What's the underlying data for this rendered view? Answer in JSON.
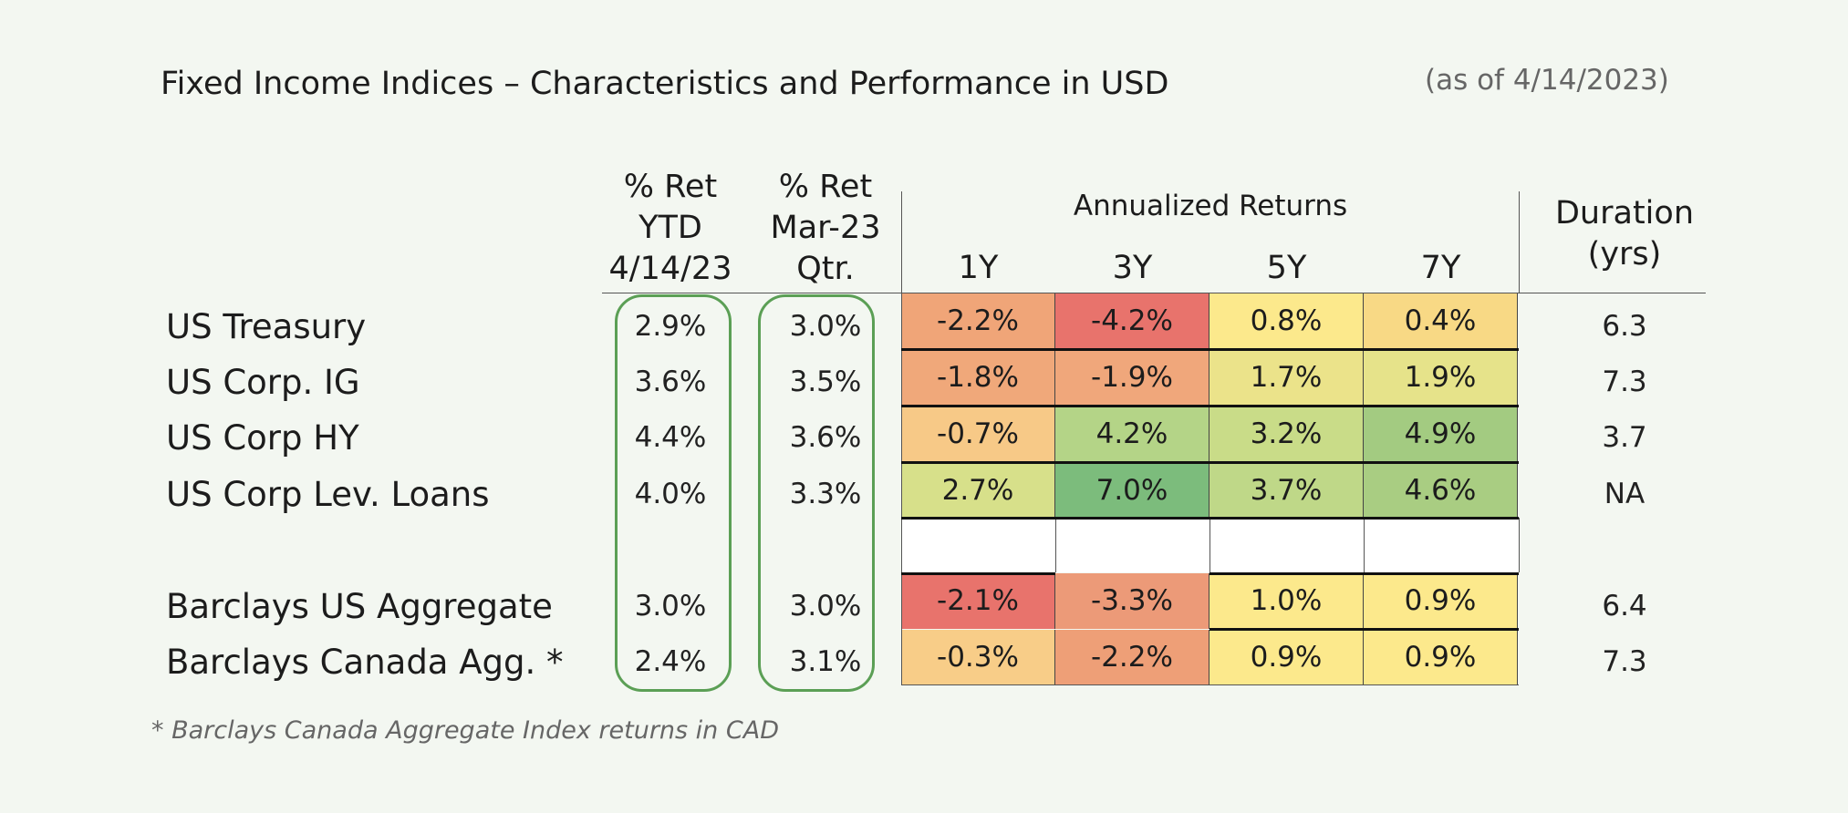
{
  "title": "Fixed Income Indices – Characteristics and Performance in USD",
  "as_of": "(as of 4/14/2023)",
  "headers": {
    "ytd": [
      "% Ret",
      "YTD",
      "4/14/23"
    ],
    "qtr": [
      "% Ret",
      "Mar-23",
      "Qtr."
    ],
    "annualized": "Annualized Returns",
    "years": [
      "1Y",
      "3Y",
      "5Y",
      "7Y"
    ],
    "duration": [
      "Duration",
      "(yrs)"
    ]
  },
  "rows": [
    {
      "label": "US Treasury",
      "ytd": "2.9%",
      "qtr": "3.0%",
      "y1": "-2.2%",
      "y3": "-4.2%",
      "y5": "0.8%",
      "y7": "0.4%",
      "duration": "6.3",
      "colors": [
        "#f0a578",
        "#e8736c",
        "#fce98c",
        "#f8d985"
      ]
    },
    {
      "label": "US Corp. IG",
      "ytd": "3.6%",
      "qtr": "3.5%",
      "y1": "-1.8%",
      "y3": "-1.9%",
      "y5": "1.7%",
      "y7": "1.9%",
      "duration": "7.3",
      "colors": [
        "#f0a87a",
        "#f0a77b",
        "#ebe38a",
        "#e6e38a"
      ]
    },
    {
      "label": "US Corp HY",
      "ytd": "4.4%",
      "qtr": "3.6%",
      "y1": "-0.7%",
      "y3": "4.2%",
      "y5": "3.2%",
      "y7": "4.9%",
      "duration": "3.7",
      "colors": [
        "#f7c987",
        "#b4d487",
        "#c9dc88",
        "#a3cb81"
      ]
    },
    {
      "label": "US Corp Lev. Loans",
      "ytd": "4.0%",
      "qtr": "3.3%",
      "y1": "2.7%",
      "y3": "7.0%",
      "y5": "3.7%",
      "y7": "4.6%",
      "duration": "NA",
      "colors": [
        "#d7e08a",
        "#7cbc7c",
        "#bfd888",
        "#a9cd82"
      ]
    },
    {
      "label": "Barclays US Aggregate",
      "ytd": "3.0%",
      "qtr": "3.0%",
      "y1": "-2.1%",
      "y3": "-3.3%",
      "y5": "1.0%",
      "y7": "0.9%",
      "duration": "6.4",
      "colors": [
        "#e8736c",
        "#ec9a78",
        "#fce98c",
        "#fce98c"
      ]
    },
    {
      "label": "Barclays Canada Agg. *",
      "ytd": "2.4%",
      "qtr": "3.1%",
      "y1": "-0.3%",
      "y3": "-2.2%",
      "y5": "0.9%",
      "y7": "0.9%",
      "duration": "7.3",
      "colors": [
        "#f8cd88",
        "#ee9f77",
        "#fce98c",
        "#fce98c"
      ]
    }
  ],
  "footnote": "* Barclays Canada Aggregate Index returns in CAD",
  "accent": "#5b9f55"
}
